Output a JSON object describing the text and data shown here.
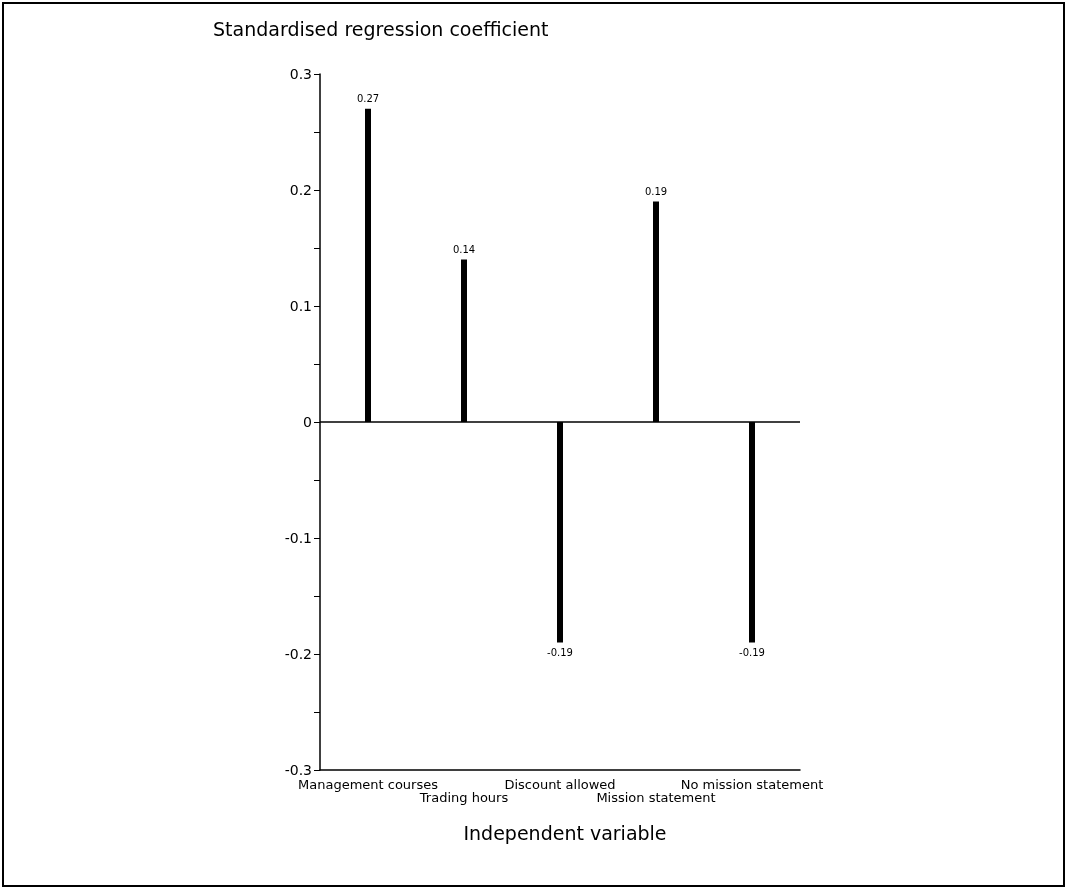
{
  "chart_data": {
    "type": "bar",
    "ylabel": "Standardised regression coefficient",
    "xlabel": "Independent variable",
    "categories": [
      "Management courses",
      "Trading hours",
      "Discount allowed",
      "Mission statement",
      "No mission statement"
    ],
    "values": [
      0.27,
      0.14,
      -0.19,
      0.19,
      -0.19
    ],
    "color": "#000000",
    "data_labels": true,
    "grid": false,
    "ylim": [
      -0.3,
      0.3
    ],
    "yticks": [
      -0.3,
      {
        "value": -0.25,
        "label": null
      },
      -0.2,
      {
        "value": -0.15,
        "label": null
      },
      -0.1,
      {
        "value": -0.05,
        "label": null
      },
      0,
      {
        "value": 0.05,
        "label": null
      },
      0.1,
      {
        "value": 0.15,
        "label": null
      },
      0.2,
      {
        "value": 0.25,
        "label": null
      },
      0.3
    ],
    "ref_lines": [
      {
        "axis": "y",
        "value": 0,
        "color": "#000000"
      }
    ]
  }
}
